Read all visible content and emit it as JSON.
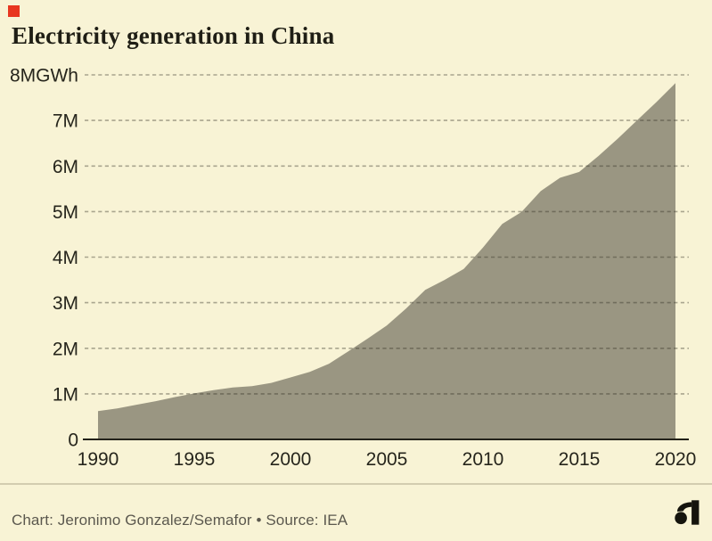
{
  "header": {
    "brand_square_color": "#e8361f",
    "title": "Electricity generation in China"
  },
  "chart_data": {
    "type": "area",
    "title": "Electricity generation in China",
    "x_years": [
      1990,
      1991,
      1992,
      1993,
      1994,
      1995,
      1996,
      1997,
      1998,
      1999,
      2000,
      2001,
      2002,
      2003,
      2004,
      2005,
      2006,
      2007,
      2008,
      2009,
      2010,
      2011,
      2012,
      2013,
      2014,
      2015,
      2016,
      2017,
      2018,
      2019,
      2020
    ],
    "values_million_gwh": [
      0.62,
      0.68,
      0.76,
      0.84,
      0.93,
      1.01,
      1.08,
      1.14,
      1.17,
      1.24,
      1.36,
      1.48,
      1.66,
      1.93,
      2.21,
      2.5,
      2.87,
      3.28,
      3.5,
      3.74,
      4.21,
      4.73,
      4.99,
      5.45,
      5.74,
      5.87,
      6.22,
      6.6,
      7.0,
      7.4,
      7.82
    ],
    "xlim": [
      1990,
      2020
    ],
    "ylim": [
      0,
      8
    ],
    "yticks": [
      {
        "value": 0,
        "label": "0"
      },
      {
        "value": 1,
        "label": "1M"
      },
      {
        "value": 2,
        "label": "2M"
      },
      {
        "value": 3,
        "label": "3M"
      },
      {
        "value": 4,
        "label": "4M"
      },
      {
        "value": 5,
        "label": "5M"
      },
      {
        "value": 6,
        "label": "6M"
      },
      {
        "value": 7,
        "label": "7M"
      },
      {
        "value": 8,
        "label": "8MGWh"
      }
    ],
    "xticks": [
      {
        "value": 1990,
        "label": "1990"
      },
      {
        "value": 1995,
        "label": "1995"
      },
      {
        "value": 2000,
        "label": "2000"
      },
      {
        "value": 2005,
        "label": "2005"
      },
      {
        "value": 2010,
        "label": "2010"
      },
      {
        "value": 2015,
        "label": "2015"
      },
      {
        "value": 2020,
        "label": "2020"
      }
    ],
    "grid": {
      "horizontal": true,
      "style": "dashed"
    },
    "legend": "none",
    "colors": {
      "area": "#9a9682",
      "background": "#f8f3d5",
      "grid": "rgba(50,48,36,0.40)",
      "axis_line": "#23221a",
      "tick_text": "#26251c"
    }
  },
  "footer": {
    "attribution": "Chart: Jeronimo Gonzalez/Semafor • Source: IEA",
    "logo": "semafor-logo"
  }
}
